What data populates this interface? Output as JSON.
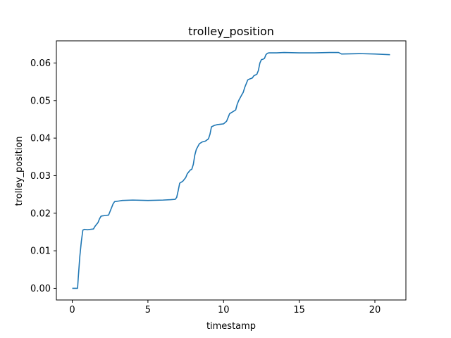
{
  "chart_data": {
    "type": "line",
    "title": "trolley_position",
    "xlabel": "timestamp",
    "ylabel": "trolley_position",
    "xlim": [
      -1.05,
      22.05
    ],
    "ylim": [
      -0.0031,
      0.0659
    ],
    "grid": false,
    "x_ticks": [
      0,
      5,
      10,
      15,
      20
    ],
    "x_tick_labels": [
      "0",
      "5",
      "10",
      "15",
      "20"
    ],
    "y_ticks": [
      0.0,
      0.01,
      0.02,
      0.03,
      0.04,
      0.05,
      0.06
    ],
    "y_tick_labels": [
      "0.00",
      "0.01",
      "0.02",
      "0.03",
      "0.04",
      "0.05",
      "0.06"
    ],
    "series": [
      {
        "color": "#1f77b4",
        "x": [
          0.0,
          0.35,
          0.4,
          0.5,
          0.6,
          0.7,
          0.8,
          1.0,
          1.2,
          1.4,
          1.5,
          1.6,
          1.7,
          1.8,
          1.9,
          2.0,
          2.2,
          2.4,
          2.5,
          2.6,
          2.7,
          2.8,
          3.0,
          3.3,
          4.0,
          5.0,
          6.0,
          6.5,
          6.8,
          6.9,
          7.0,
          7.1,
          7.3,
          7.5,
          7.6,
          7.8,
          7.9,
          8.0,
          8.1,
          8.2,
          8.4,
          8.6,
          8.8,
          9.0,
          9.1,
          9.2,
          9.4,
          9.6,
          9.8,
          10.0,
          10.2,
          10.3,
          10.4,
          10.6,
          10.8,
          10.9,
          11.0,
          11.2,
          11.3,
          11.4,
          11.6,
          11.7,
          11.9,
          12.0,
          12.2,
          12.3,
          12.4,
          12.5,
          12.6,
          12.7,
          12.8,
          12.9,
          13.0,
          13.5,
          14.0,
          15.0,
          16.0,
          17.0,
          17.6,
          17.8,
          19.0,
          20.0,
          20.5,
          21.0
        ],
        "y": [
          0.0,
          0.0,
          0.003,
          0.0085,
          0.0125,
          0.0155,
          0.0157,
          0.0156,
          0.0157,
          0.0158,
          0.0165,
          0.017,
          0.0175,
          0.0185,
          0.0192,
          0.0193,
          0.0194,
          0.0195,
          0.0205,
          0.0215,
          0.0225,
          0.0231,
          0.0232,
          0.0234,
          0.0235,
          0.0234,
          0.0235,
          0.0236,
          0.0237,
          0.0242,
          0.026,
          0.028,
          0.0285,
          0.0295,
          0.0305,
          0.0315,
          0.0317,
          0.033,
          0.0355,
          0.037,
          0.0385,
          0.039,
          0.0392,
          0.0398,
          0.041,
          0.043,
          0.0434,
          0.0436,
          0.0437,
          0.0438,
          0.0445,
          0.0455,
          0.0465,
          0.047,
          0.0475,
          0.049,
          0.05,
          0.0515,
          0.0522,
          0.0535,
          0.0555,
          0.0557,
          0.056,
          0.0566,
          0.057,
          0.058,
          0.06,
          0.0609,
          0.061,
          0.0612,
          0.0622,
          0.0626,
          0.0627,
          0.0627,
          0.0628,
          0.0627,
          0.0627,
          0.0628,
          0.0628,
          0.0624,
          0.0625,
          0.0624,
          0.0623,
          0.0622
        ]
      }
    ]
  }
}
